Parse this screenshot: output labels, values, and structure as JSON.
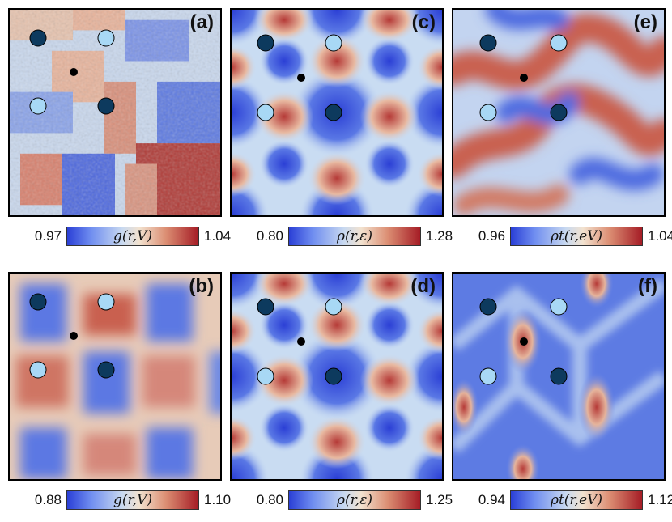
{
  "panels": [
    {
      "id": "a",
      "label": "(a)",
      "cmin": "0.97",
      "cmax": "1.04",
      "quantity": "g(r,V)",
      "style": "noisy-g"
    },
    {
      "id": "c",
      "label": "(c)",
      "cmin": "0.80",
      "cmax": "1.28",
      "quantity": "ρ(r,ε)",
      "style": "lattice"
    },
    {
      "id": "e",
      "label": "(e)",
      "cmin": "0.96",
      "cmax": "1.04",
      "quantity": "ρt(r,eV)",
      "style": "stripes"
    },
    {
      "id": "b",
      "label": "(b)",
      "cmin": "0.88",
      "cmax": "1.10",
      "quantity": "g(r,V)",
      "style": "blocky-g"
    },
    {
      "id": "d",
      "label": "(d)",
      "cmin": "0.80",
      "cmax": "1.25",
      "quantity": "ρ(r,ε)",
      "style": "lattice"
    },
    {
      "id": "f",
      "label": "(f)",
      "cmin": "0.94",
      "cmax": "1.12",
      "quantity": "ρt(r,eV)",
      "style": "ellipses"
    }
  ],
  "colors": {
    "dark_marker": "#0d3a5e",
    "light_marker": "#a8d8f5",
    "dot": "#000000",
    "map_low": "#2a3fd6",
    "map_high": "#a51c25"
  }
}
